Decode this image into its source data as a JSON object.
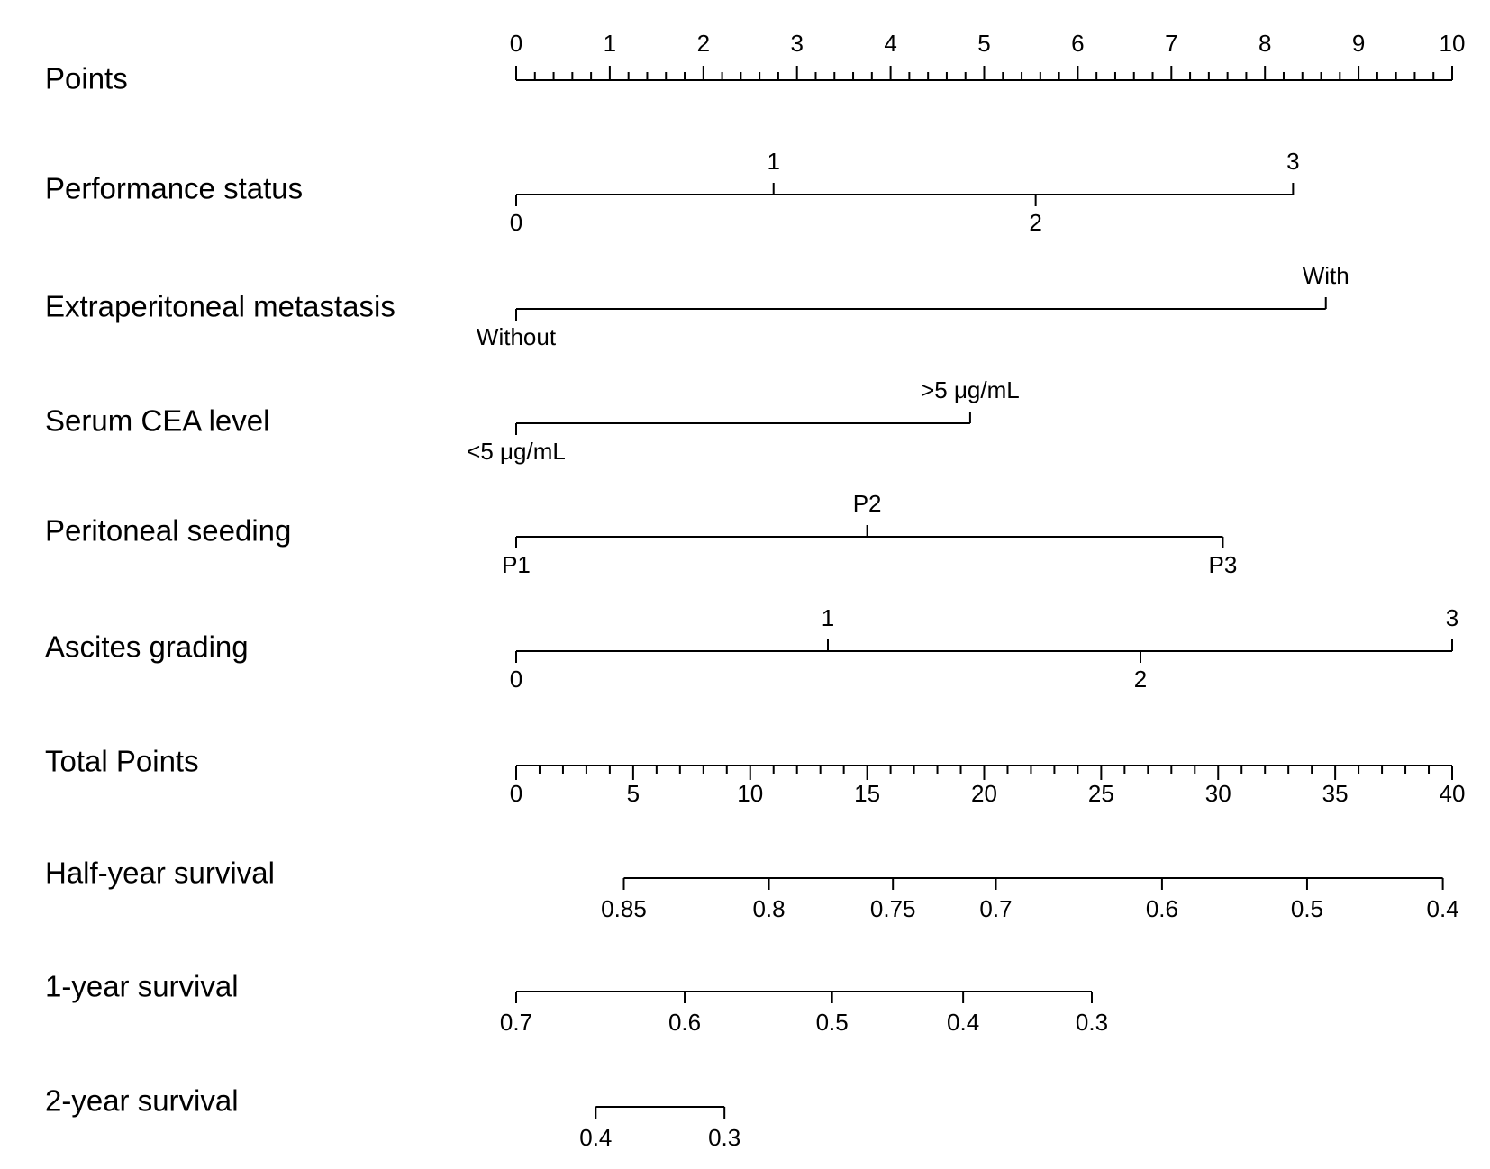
{
  "chart_data": {
    "type": "nomogram",
    "rows": [
      {
        "label": "Points",
        "kind": "points",
        "range": [
          0,
          10
        ],
        "major_ticks": [
          "0",
          "1",
          "2",
          "3",
          "4",
          "5",
          "6",
          "7",
          "8",
          "9",
          "10"
        ],
        "minor_per_major": 5
      },
      {
        "label": "Performance status",
        "kind": "factor",
        "levels": [
          {
            "name": "0",
            "points": 0,
            "side": "below"
          },
          {
            "name": "1",
            "points": 2.75,
            "side": "above"
          },
          {
            "name": "2",
            "points": 5.55,
            "side": "below"
          },
          {
            "name": "3",
            "points": 8.3,
            "side": "above"
          }
        ]
      },
      {
        "label": "Extraperitoneal metastasis",
        "kind": "factor",
        "levels": [
          {
            "name": "Without",
            "points": 0,
            "side": "below"
          },
          {
            "name": "With",
            "points": 8.65,
            "side": "above"
          }
        ]
      },
      {
        "label": "Serum CEA level",
        "kind": "factor",
        "levels": [
          {
            "name": "<5 μg/mL",
            "points": 0,
            "side": "below"
          },
          {
            "name": ">5 μg/mL",
            "points": 4.85,
            "side": "above"
          }
        ]
      },
      {
        "label": "Peritoneal seeding",
        "kind": "factor",
        "levels": [
          {
            "name": "P1",
            "points": 0,
            "side": "below"
          },
          {
            "name": "P2",
            "points": 3.75,
            "side": "above"
          },
          {
            "name": "P3",
            "points": 7.55,
            "side": "below"
          }
        ]
      },
      {
        "label": "Ascites grading",
        "kind": "factor",
        "levels": [
          {
            "name": "0",
            "points": 0,
            "side": "below"
          },
          {
            "name": "1",
            "points": 3.33,
            "side": "above"
          },
          {
            "name": "2",
            "points": 6.67,
            "side": "below"
          },
          {
            "name": "3",
            "points": 10,
            "side": "above"
          }
        ]
      },
      {
        "label": "Total Points",
        "kind": "total",
        "range": [
          0,
          40
        ],
        "major_ticks": [
          "0",
          "5",
          "10",
          "15",
          "20",
          "25",
          "30",
          "35",
          "40"
        ],
        "minor_per_major": 5
      },
      {
        "label": "Half-year survival",
        "kind": "survival",
        "ticks": [
          {
            "value": "0.85",
            "total_points": 4.6
          },
          {
            "value": "0.8",
            "total_points": 10.8
          },
          {
            "value": "0.75",
            "total_points": 16.1
          },
          {
            "value": "0.7",
            "total_points": 20.5
          },
          {
            "value": "0.6",
            "total_points": 27.6
          },
          {
            "value": "0.5",
            "total_points": 33.8
          },
          {
            "value": "0.4",
            "total_points": 39.6
          }
        ]
      },
      {
        "label": "1-year survival",
        "kind": "survival",
        "ticks": [
          {
            "value": "0.7",
            "total_points": 0
          },
          {
            "value": "0.6",
            "total_points": 7.2
          },
          {
            "value": "0.5",
            "total_points": 13.5
          },
          {
            "value": "0.4",
            "total_points": 19.1
          },
          {
            "value": "0.3",
            "total_points": 24.6
          }
        ]
      },
      {
        "label": "2-year survival",
        "kind": "survival",
        "ticks": [
          {
            "value": "0.4",
            "total_points": 3.4
          },
          {
            "value": "0.3",
            "total_points": 8.9
          }
        ]
      }
    ]
  }
}
